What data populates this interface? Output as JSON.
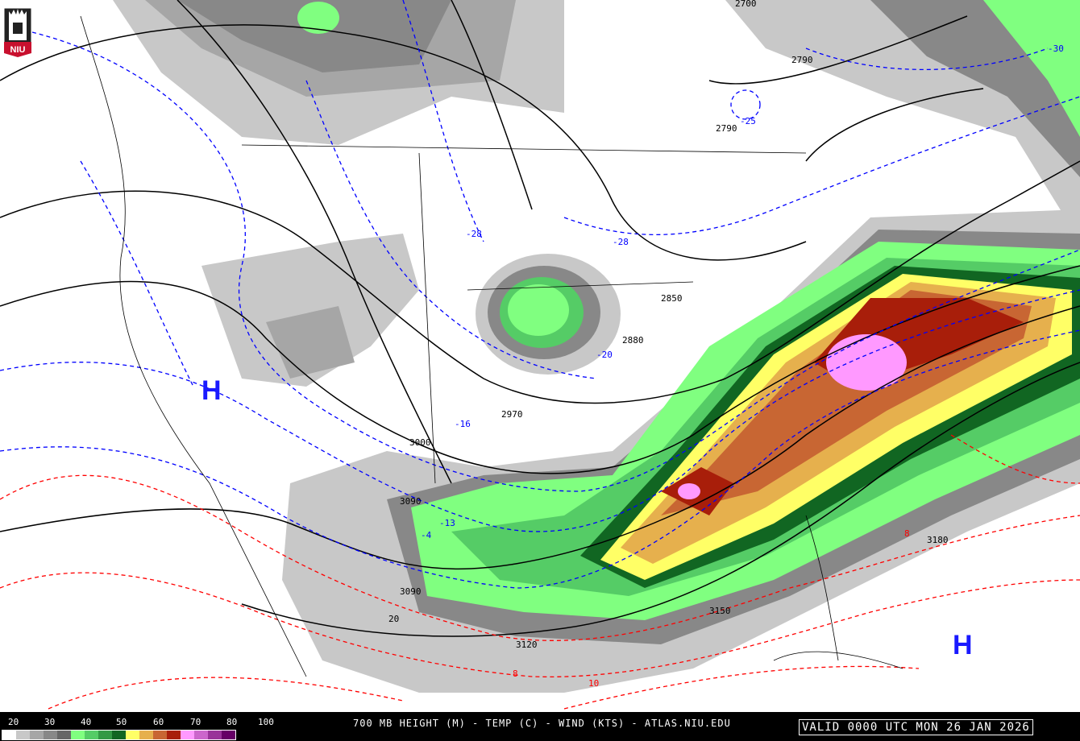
{
  "logo": {
    "text": "NIU",
    "color": "#c8102e"
  },
  "map": {
    "high_centers": [
      {
        "label": "H",
        "region": "great-basin"
      },
      {
        "label": "H",
        "region": "bahamas"
      }
    ],
    "height_contour_labels": [
      "2700",
      "2790",
      "2790",
      "2850",
      "2880",
      "2970",
      "3000",
      "3090",
      "3090",
      "3120",
      "3150",
      "3180"
    ],
    "temperature_labels_cold": [
      "-30",
      "-28",
      "-28",
      "-25",
      "-20",
      "-16",
      "-13",
      "-4"
    ],
    "temperature_labels_warm": [
      "8",
      "8",
      "10",
      "20"
    ],
    "colors": {
      "height_contour": "#000000",
      "cold_isotherm": "#0000ff",
      "warm_isotherm": "#ff0000",
      "high_marker": "#1a1aff"
    }
  },
  "legend": {
    "ticks": [
      "20",
      "30",
      "40",
      "50",
      "60",
      "70",
      "80",
      "100"
    ],
    "colors": [
      "#ffffff",
      "#c8c8c8",
      "#a6a6a6",
      "#888888",
      "#666666",
      "#80ff80",
      "#55cc66",
      "#339944",
      "#116622",
      "#ffff66",
      "#e6b04d",
      "#c86633",
      "#a81e0a",
      "#ff99ff",
      "#cc66cc",
      "#993399",
      "#660066"
    ]
  },
  "footer": {
    "title": "700 MB HEIGHT (M) - TEMP (C) - WIND (KTS) - ATLAS.NIU.EDU",
    "valid": "VALID 0000 UTC MON 26 JAN 2026"
  }
}
